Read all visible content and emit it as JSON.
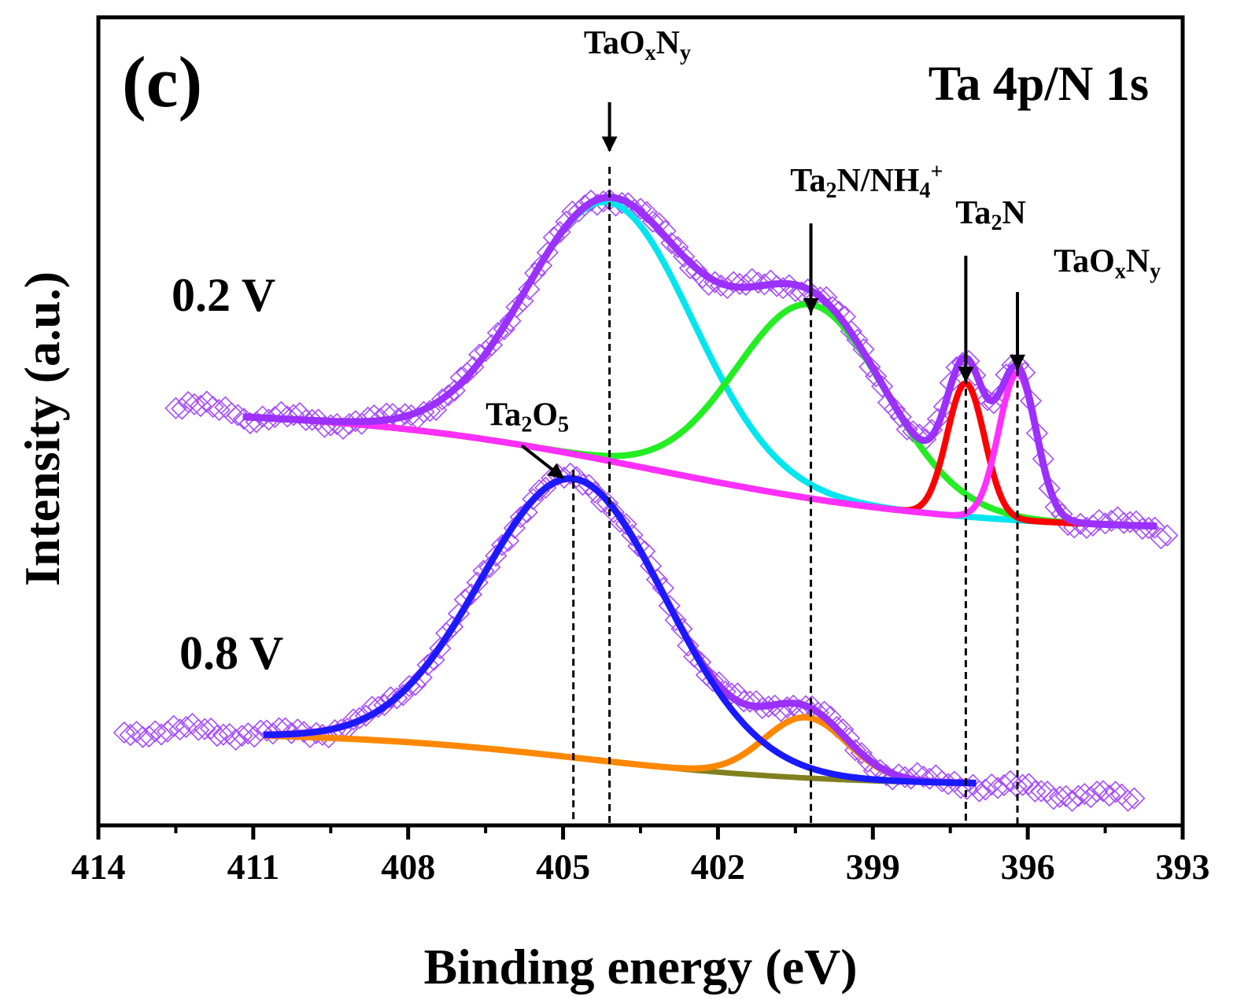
{
  "chart_data": {
    "type": "line",
    "panel_label": "(c)",
    "title": "Ta 4p/N 1s",
    "xlabel": "Binding energy (eV)",
    "ylabel": "Intensity (a.u.)",
    "xlim": [
      414,
      393
    ],
    "ylim": [
      0,
      10
    ],
    "x_reversed": true,
    "grid": false,
    "x_ticks": [
      414,
      411,
      408,
      405,
      402,
      399,
      396,
      393
    ],
    "x_tick_labels": [
      "414",
      "411",
      "408",
      "405",
      "402",
      "399",
      "396",
      "393"
    ],
    "colors": {
      "raw": "#a64dff",
      "envelope": "#9b30ff",
      "taoxny_main": "#00e5ee",
      "ta2n_nh4": "#22ee22",
      "ta2n": "#ff0000",
      "taoxny_low": "#ff30ff",
      "background_02": "#9a8a2a",
      "ta2o5": "#1a1aff",
      "second_peak_08": "#ff8800",
      "background_08": "#808020",
      "dash": "#000000",
      "axis": "#000000"
    },
    "groups": [
      {
        "label": "0.2 V",
        "baseline": {
          "type": "shirley",
          "start_x": 411.2,
          "end_x": 393.5,
          "y_high": 5.15,
          "y_low": 3.65
        },
        "peaks": [
          {
            "name": "TaOxNy",
            "center": 404.1,
            "fwhm": 3.8,
            "height": 3.2
          },
          {
            "name": "Ta2N/NH4+",
            "center": 400.2,
            "fwhm": 3.4,
            "height": 2.4
          },
          {
            "name": "Ta2N",
            "center": 397.2,
            "fwhm": 0.85,
            "height": 1.65
          },
          {
            "name": "TaOxNy",
            "center": 396.2,
            "fwhm": 0.85,
            "height": 1.82
          }
        ],
        "series": [
          {
            "name": "Raw data",
            "style": "markers",
            "x_range": [
              412.5,
              393.3
            ],
            "y_range": [
              3.6,
              8.3
            ]
          },
          {
            "name": "Envelope",
            "style": "line",
            "x_range": [
              411.2,
              393.5
            ],
            "y_range": [
              3.65,
              8.15
            ]
          },
          {
            "name": "TaOxNy",
            "style": "line",
            "x_range": [
              411.2,
              393.5
            ]
          },
          {
            "name": "Ta2N/NH4+",
            "style": "line",
            "x_range": [
              411.2,
              393.5
            ]
          },
          {
            "name": "Ta2N",
            "style": "line",
            "x_range": [
              411.2,
              393.5
            ]
          },
          {
            "name": "TaOxNy",
            "style": "line",
            "x_range": [
              411.2,
              393.5
            ]
          },
          {
            "name": "Background",
            "style": "line",
            "x_range": [
              411.2,
              393.5
            ]
          }
        ]
      },
      {
        "label": "0.8 V",
        "baseline": {
          "type": "shirley",
          "start_x": 410.8,
          "end_x": 397.0,
          "y_high": 1.15,
          "y_low": 0.5
        },
        "peaks": [
          {
            "name": "Ta2O5",
            "center": 404.8,
            "fwhm": 4.2,
            "height": 3.45
          },
          {
            "name": "Second peak",
            "center": 400.3,
            "fwhm": 1.9,
            "height": 0.75
          }
        ],
        "series": [
          {
            "name": "Raw data",
            "style": "markers",
            "x_range": [
              413.5,
              393.9
            ],
            "y_range": [
              0.2,
              4.6
            ]
          },
          {
            "name": "Envelope",
            "style": "line",
            "x_range": [
              410.8,
              397.0
            ],
            "y_range": [
              0.5,
              4.45
            ]
          },
          {
            "name": "Ta2O5",
            "style": "line",
            "x_range": [
              410.8,
              397.0
            ]
          },
          {
            "name": "Second peak",
            "style": "line",
            "x_range": [
              410.8,
              397.0
            ]
          },
          {
            "name": "Background",
            "style": "line",
            "x_range": [
              410.8,
              397.0
            ]
          }
        ]
      }
    ],
    "annotations": [
      {
        "kind": "label-arrow",
        "main": "TaO",
        "sub1": "x",
        "mid": "N",
        "sub2": "y",
        "sup": "",
        "end": "",
        "text_x": 404.6,
        "text_y": 9.55,
        "arrow_from": [
          404.1,
          8.95
        ],
        "arrow_to": [
          404.1,
          8.35
        ]
      },
      {
        "kind": "label-arrow",
        "main": "Ta",
        "sub1": "2",
        "mid": "N/NH",
        "sub2": "4",
        "sup": "+",
        "end": "",
        "text_x": 400.6,
        "text_y": 7.85,
        "arrow_from": [
          400.2,
          7.45
        ],
        "arrow_to": [
          400.2,
          6.35
        ]
      },
      {
        "kind": "label-arrow",
        "main": "Ta",
        "sub1": "2",
        "mid": "N",
        "sub2": "",
        "sup": "",
        "end": "",
        "text_x": 397.4,
        "text_y": 7.45,
        "arrow_from": [
          397.2,
          7.05
        ],
        "arrow_to": [
          397.2,
          5.5
        ]
      },
      {
        "kind": "label-arrow",
        "main": "TaO",
        "sub1": "x",
        "mid": "N",
        "sub2": "y",
        "sup": "",
        "end": "",
        "text_x": 395.5,
        "text_y": 6.85,
        "arrow_from": [
          396.2,
          6.6
        ],
        "arrow_to": [
          396.2,
          5.65
        ]
      },
      {
        "kind": "label-arrow",
        "main": "Ta",
        "sub1": "2",
        "mid": "O",
        "sub2": "5",
        "sup": "",
        "end": "",
        "text_x": 406.5,
        "text_y": 4.95,
        "arrow_from": [
          405.8,
          4.7
        ],
        "arrow_to": [
          405.0,
          4.3
        ]
      }
    ],
    "dashed_lines": [
      {
        "x": 404.1,
        "y_from": 8.15,
        "y_to": 0.0
      },
      {
        "x": 400.2,
        "y_from": 6.4,
        "y_to": 0.0
      },
      {
        "x": 397.2,
        "y_from": 5.55,
        "y_to": 0.0
      },
      {
        "x": 396.2,
        "y_from": 5.65,
        "y_to": 0.0
      },
      {
        "x": 404.8,
        "y_from": 4.4,
        "y_to": 0.0
      }
    ]
  }
}
